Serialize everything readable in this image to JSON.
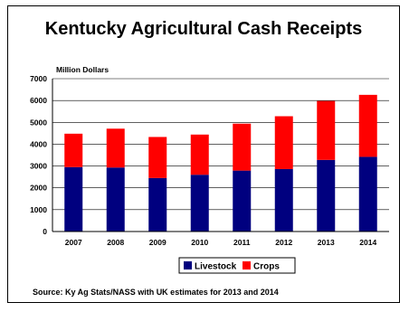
{
  "chart_data": {
    "type": "bar",
    "stacked": true,
    "title": "Kentucky Agricultural Cash Receipts",
    "ylabel": "Million Dollars",
    "xlabel": "",
    "categories": [
      "2007",
      "2008",
      "2009",
      "2010",
      "2011",
      "2012",
      "2013",
      "2014"
    ],
    "ylim": [
      0,
      7000
    ],
    "yticks": [
      0,
      1000,
      2000,
      3000,
      4000,
      5000,
      6000,
      7000
    ],
    "grid": true,
    "legend": "bottom-center",
    "series": [
      {
        "name": "Livestock",
        "color": "#00007f",
        "values": [
          2950,
          2930,
          2450,
          2600,
          2790,
          2860,
          3280,
          3420
        ]
      },
      {
        "name": "Crops",
        "color": "#ff0000",
        "values": [
          1530,
          1780,
          1880,
          1840,
          2150,
          2420,
          2700,
          2840
        ]
      }
    ],
    "source": "Source:  Ky Ag Stats/NASS with UK estimates for 2013 and 2014"
  }
}
